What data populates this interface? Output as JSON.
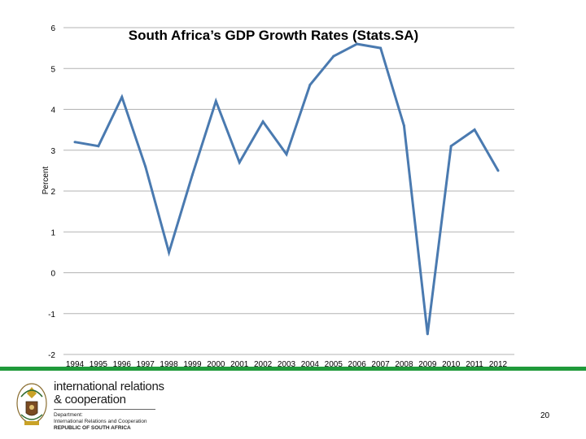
{
  "chart_data": {
    "type": "line",
    "title": "South Africa’s GDP Growth Rates (Stats.SA)",
    "ylabel": "Percent",
    "xlabel": "",
    "ylim": [
      -2,
      6
    ],
    "yticks": [
      6,
      5,
      4,
      3,
      2,
      1,
      0,
      -1,
      -2
    ],
    "grid": true,
    "categories": [
      "1994",
      "1995",
      "1996",
      "1997",
      "1998",
      "1999",
      "2000",
      "2001",
      "2002",
      "2003",
      "2004",
      "2005",
      "2006",
      "2007",
      "2008",
      "2009",
      "2010",
      "2011",
      "2012"
    ],
    "series": [
      {
        "values": [
          3.2,
          3.1,
          4.3,
          2.6,
          0.5,
          2.4,
          4.2,
          2.7,
          3.7,
          2.9,
          4.6,
          5.3,
          5.6,
          5.5,
          3.6,
          -1.5,
          3.1,
          3.5,
          2.5
        ]
      }
    ],
    "line_color": "#4a7ab0",
    "grid_color": "#b3b3b3"
  },
  "footer": {
    "org_line1": "international relations",
    "org_line2": "& cooperation",
    "dept_line1": "Department:",
    "dept_line2": "International Relations and Cooperation",
    "dept_line3": "REPUBLIC OF SOUTH AFRICA",
    "page_number": "20",
    "accent_color": "#1f9a3a"
  }
}
